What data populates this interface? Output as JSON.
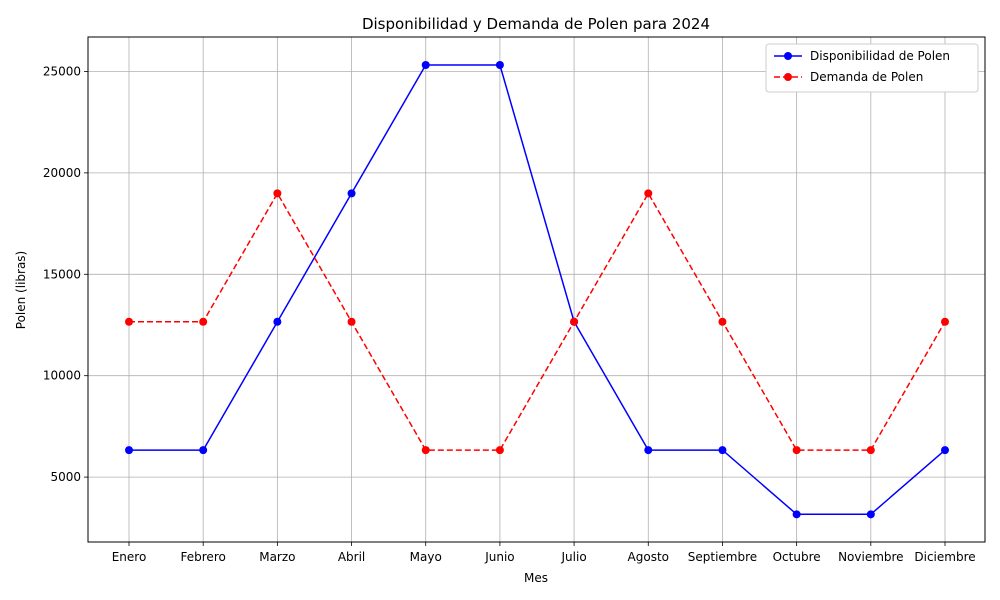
{
  "chart_data": {
    "type": "line",
    "title": "Disponibilidad y Demanda de Polen para 2024",
    "xlabel": "Mes",
    "ylabel": "Polen (libras)",
    "categories": [
      "Enero",
      "Febrero",
      "Marzo",
      "Abril",
      "Mayo",
      "Junio",
      "Julio",
      "Agosto",
      "Septiembre",
      "Octubre",
      "Noviembre",
      "Diciembre"
    ],
    "yticks": [
      5000,
      10000,
      15000,
      20000,
      25000
    ],
    "ylim": [
      1800,
      26700
    ],
    "grid": true,
    "legend_position": "top-right",
    "series": [
      {
        "name": "Disponibilidad de Polen",
        "color": "#0000ff",
        "line_style": "solid",
        "marker": "circle",
        "values": [
          6330,
          6330,
          12660,
          18990,
          25320,
          25320,
          12660,
          6330,
          6330,
          3165,
          3165,
          6330
        ]
      },
      {
        "name": "Demanda de Polen",
        "color": "#ff0000",
        "line_style": "dashed",
        "marker": "circle",
        "values": [
          12660,
          12660,
          18990,
          12660,
          6330,
          6330,
          12660,
          18990,
          12660,
          6330,
          6330,
          12660
        ]
      }
    ]
  }
}
